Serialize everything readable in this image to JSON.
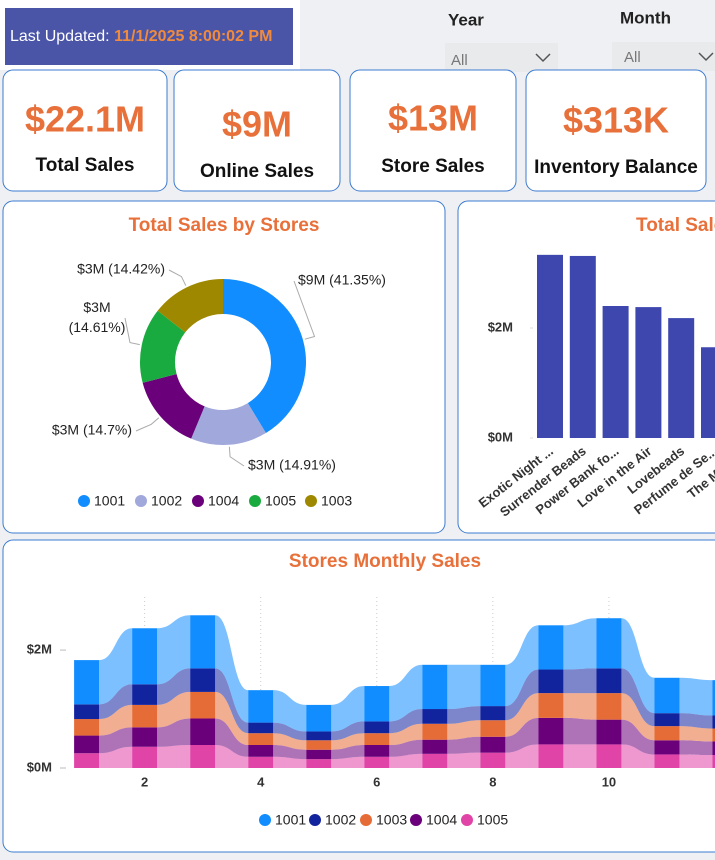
{
  "header": {
    "last_updated_label": "Last Updated:",
    "last_updated_value": "11/1/2025 8:00:02 PM"
  },
  "filters": [
    {
      "label": "Year",
      "value": "All"
    },
    {
      "label": "Month",
      "value": "All"
    }
  ],
  "cards": [
    {
      "value": "$22.1M",
      "label": "Total Sales"
    },
    {
      "value": "$9M",
      "label": "Online Sales"
    },
    {
      "value": "$13M",
      "label": "Store Sales"
    },
    {
      "value": "$313K",
      "label": "Inventory Balance"
    }
  ],
  "chart_data": [
    {
      "type": "donut",
      "title": "Total Sales by Stores",
      "categories": [
        "1001",
        "1002",
        "1004",
        "1005",
        "1003"
      ],
      "values": [
        41.35,
        14.91,
        14.7,
        14.61,
        14.42
      ],
      "value_labels": [
        "$9M (41.35%)",
        "$3M (14.91%)",
        "$3M (14.7%)",
        "$3M (14.61%)",
        "$3M (14.42%)"
      ],
      "colors": [
        "#118DFF",
        "#A0A8DC",
        "#6B007B",
        "#1AAB40",
        "#9E8800"
      ],
      "legend": "bottom"
    },
    {
      "type": "bar",
      "title": "Total Sale",
      "categories": [
        "Exotic Night ...",
        "Surrender Beads",
        "Power Bank fo...",
        "Love in the Air",
        "Lovebeads",
        "Perfume de Se...",
        "The Mome..."
      ],
      "values": [
        3330000,
        3310000,
        2400000,
        2380000,
        2180000,
        1650000,
        null
      ],
      "color": "#3E47AD",
      "ylim": [
        0,
        3600000
      ],
      "yticks": [
        {
          "value": 0,
          "label": "$0M"
        },
        {
          "value": 2000000,
          "label": "$2M"
        }
      ]
    },
    {
      "type": "ribbon",
      "title": "Stores Monthly Sales",
      "x": [
        1,
        2,
        3,
        4,
        5,
        6,
        7,
        8,
        9,
        10,
        11,
        12
      ],
      "series": [
        {
          "name": "1001",
          "color": "#118DFF",
          "values": [
            750000,
            950000,
            900000,
            550000,
            450000,
            600000,
            750000,
            700000,
            750000,
            850000,
            600000,
            600000
          ]
        },
        {
          "name": "1002",
          "color": "#12239E",
          "values": [
            250000,
            350000,
            400000,
            180000,
            150000,
            200000,
            250000,
            240000,
            400000,
            420000,
            220000,
            220000
          ]
        },
        {
          "name": "1003",
          "color": "#E66C37",
          "values": [
            280000,
            380000,
            450000,
            200000,
            160000,
            200000,
            270000,
            280000,
            420000,
            450000,
            240000,
            220000
          ]
        },
        {
          "name": "1004",
          "color": "#6B007B",
          "values": [
            300000,
            330000,
            450000,
            200000,
            160000,
            200000,
            240000,
            270000,
            450000,
            420000,
            240000,
            230000
          ]
        },
        {
          "name": "1005",
          "color": "#E044A7",
          "values": [
            250000,
            360000,
            390000,
            190000,
            150000,
            190000,
            240000,
            260000,
            400000,
            400000,
            230000,
            220000
          ]
        }
      ],
      "xlim": [
        0.8,
        12
      ],
      "xticks": [
        2,
        4,
        6,
        8,
        10
      ],
      "ylim": [
        0,
        2900000
      ],
      "yticks": [
        {
          "value": 0,
          "label": "$0M"
        },
        {
          "value": 2000000,
          "label": "$2M"
        }
      ],
      "grid": true,
      "legend": "bottom"
    }
  ]
}
